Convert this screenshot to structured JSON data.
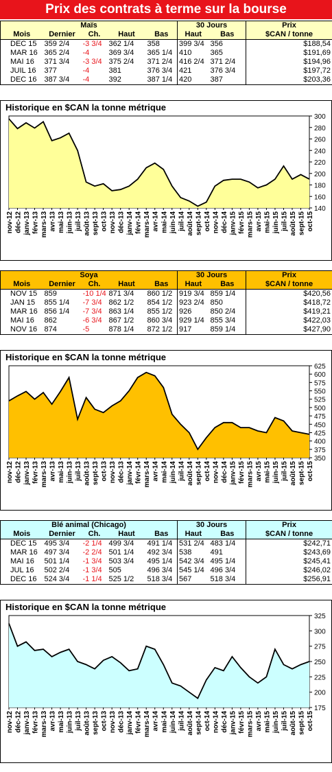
{
  "banner": "Prix des contrats à terme sur la bourse",
  "chart_title": "Historique en $CAN la tonne métrique",
  "header_labels": {
    "mois": "Mois",
    "dernier": "Dernier",
    "ch": "Ch.",
    "haut": "Haut",
    "bas": "Bas",
    "thirty": "30 Jours",
    "prix": "Prix",
    "unit": "$CAN / tonne"
  },
  "x_labels": [
    "nov-12",
    "déc-12",
    "janv-13",
    "févr-13",
    "mars-13",
    "avr-13",
    "mai-13",
    "juin-13",
    "juil-13",
    "août-13",
    "sept-13",
    "oct-13",
    "nov-13",
    "déc-13",
    "janv-14",
    "févr-14",
    "mars-14",
    "avr-14",
    "mai-14",
    "juin-14",
    "juil-14",
    "août-14",
    "sept-14",
    "oct-14",
    "nov-14",
    "déc-14",
    "janv-15",
    "févr-15",
    "mars-15",
    "avr-15",
    "mai-15",
    "juin-15",
    "juil-15",
    "août-15",
    "sept-15",
    "oct-15"
  ],
  "sections": [
    {
      "name": "Maïs",
      "head_color": "#ffffc0",
      "rows": [
        {
          "mois": "DEC 15",
          "dernier": "359 2/4",
          "ch": "-3 3/4",
          "haut": "362 1/4",
          "bas": "358",
          "h30": "399 3/4",
          "b30": "356",
          "prix": "$188,54"
        },
        {
          "mois": "MAR 16",
          "dernier": "365 2/4",
          "ch": "-4",
          "haut": "369 3/4",
          "bas": "365 1/4",
          "h30": "410",
          "b30": "365",
          "prix": "$191,69"
        },
        {
          "mois": "MAI 16",
          "dernier": "371 3/4",
          "ch": "-3 3/4",
          "haut": "375 2/4",
          "bas": "371 2/4",
          "h30": "416 2/4",
          "b30": "371 2/4",
          "prix": "$194,96"
        },
        {
          "mois": "JUIL 16",
          "dernier": "377",
          "ch": "-4",
          "haut": "381",
          "bas": "376 3/4",
          "h30": "421",
          "b30": "376 3/4",
          "prix": "$197,72"
        },
        {
          "mois": "DEC 16",
          "dernier": "387 3/4",
          "ch": "-4",
          "haut": "392",
          "bas": "387 1/4",
          "h30": "420",
          "b30": "387",
          "prix": "$203,36"
        }
      ]
    },
    {
      "name": "Soya",
      "head_color": "#ffc000",
      "rows": [
        {
          "mois": "NOV 15",
          "dernier": "859",
          "ch": "-10 1/4",
          "haut": "871 3/4",
          "bas": "860 1/2",
          "h30": "919 3/4",
          "b30": "859 1/4",
          "prix": "$420,56"
        },
        {
          "mois": "JAN 15",
          "dernier": "855 1/4",
          "ch": "-7 3/4",
          "haut": "862 1/2",
          "bas": "854 1/2",
          "h30": "923 2/4",
          "b30": "850",
          "prix": "$418,72"
        },
        {
          "mois": "MAR 16",
          "dernier": "856 1/4",
          "ch": "-7 3/4",
          "haut": "863 1/4",
          "bas": "855 1/2",
          "h30": "926",
          "b30": "850 2/4",
          "prix": "$419,21"
        },
        {
          "mois": "MAI 16",
          "dernier": "862",
          "ch": "-6 3/4",
          "haut": "867 1/2",
          "bas": "860 3/4",
          "h30": "929 1/4",
          "b30": "855 3/4",
          "prix": "$422,03"
        },
        {
          "mois": "NOV 16",
          "dernier": "874",
          "ch": "-5",
          "haut": "878 1/4",
          "bas": "872 1/2",
          "h30": "917",
          "b30": "859 1/4",
          "prix": "$427,90"
        }
      ]
    },
    {
      "name": "Blé animal (Chicago)",
      "head_color": "#ccffff",
      "rows": [
        {
          "mois": "DEC 15",
          "dernier": "495 3/4",
          "ch": "-2 1/4",
          "haut": "499 3/4",
          "bas": "491 1/4",
          "h30": "531 2/4",
          "b30": "483 1/4",
          "prix": "$242,71"
        },
        {
          "mois": "MAR 16",
          "dernier": "497 3/4",
          "ch": "-2 2/4",
          "haut": "501 1/4",
          "bas": "492 3/4",
          "h30": "538",
          "b30": "491",
          "prix": "$243,69"
        },
        {
          "mois": "MAI 16",
          "dernier": "501 1/4",
          "ch": "-1 3/4",
          "haut": "503 3/4",
          "bas": "495 1/4",
          "h30": "542 3/4",
          "b30": "495 1/4",
          "prix": "$245,41"
        },
        {
          "mois": "JUL 16",
          "dernier": "502 2/4",
          "ch": "-1 3/4",
          "haut": "505",
          "bas": "496 3/4",
          "h30": "545 1/4",
          "b30": "496 3/4",
          "prix": "$246,02"
        },
        {
          "mois": "DEC 16",
          "dernier": "524 3/4",
          "ch": "-1 1/4",
          "haut": "525 1/2",
          "bas": "518 3/4",
          "h30": "567",
          "b30": "518 3/4",
          "prix": "$256,91"
        }
      ]
    }
  ],
  "chart_data": [
    {
      "type": "area",
      "fill": "#ffff99",
      "ylim": [
        140,
        300
      ],
      "yticks": [
        140,
        160,
        180,
        200,
        220,
        240,
        260,
        280,
        300
      ],
      "x": [
        "nov-12",
        "déc-12",
        "janv-13",
        "févr-13",
        "mars-13",
        "avr-13",
        "mai-13",
        "juin-13",
        "juil-13",
        "août-13",
        "sept-13",
        "oct-13",
        "nov-13",
        "déc-13",
        "janv-14",
        "févr-14",
        "mars-14",
        "avr-14",
        "mai-14",
        "juin-14",
        "juil-14",
        "août-14",
        "sept-14",
        "oct-14",
        "nov-14",
        "déc-14",
        "janv-15",
        "févr-15",
        "mars-15",
        "avr-15",
        "mai-15",
        "juin-15",
        "juil-15",
        "août-15",
        "sept-15",
        "oct-15"
      ],
      "values": [
        295,
        278,
        288,
        279,
        290,
        257,
        262,
        270,
        240,
        185,
        178,
        182,
        170,
        172,
        178,
        190,
        210,
        218,
        207,
        178,
        158,
        152,
        143,
        150,
        178,
        188,
        190,
        190,
        185,
        175,
        180,
        190,
        213,
        190,
        198,
        190
      ]
    },
    {
      "type": "area",
      "fill": "#ffc000",
      "ylim": [
        350,
        625
      ],
      "yticks": [
        350,
        375,
        400,
        425,
        450,
        475,
        500,
        525,
        550,
        575,
        600,
        625
      ],
      "x": [
        "nov-12",
        "déc-12",
        "janv-13",
        "févr-13",
        "mars-13",
        "avr-13",
        "mai-13",
        "juin-13",
        "juil-13",
        "août-13",
        "sept-13",
        "oct-13",
        "nov-13",
        "déc-13",
        "janv-14",
        "févr-14",
        "mars-14",
        "avr-14",
        "mai-14",
        "juin-14",
        "juil-14",
        "août-14",
        "sept-14",
        "oct-14",
        "nov-14",
        "déc-14",
        "janv-15",
        "févr-15",
        "mars-15",
        "avr-15",
        "mai-15",
        "juin-15",
        "juil-15",
        "août-15",
        "sept-15",
        "oct-15"
      ],
      "values": [
        520,
        535,
        548,
        525,
        545,
        510,
        548,
        590,
        465,
        530,
        495,
        485,
        505,
        520,
        550,
        590,
        605,
        595,
        560,
        480,
        450,
        425,
        375,
        410,
        440,
        455,
        455,
        440,
        440,
        430,
        425,
        470,
        460,
        430,
        425,
        420
      ]
    },
    {
      "type": "area",
      "fill": "#ccffff",
      "ylim": [
        175,
        325
      ],
      "yticks": [
        175,
        200,
        225,
        250,
        275,
        300,
        325
      ],
      "x": [
        "nov-12",
        "déc-12",
        "janv-13",
        "févr-13",
        "mars-13",
        "avr-13",
        "mai-13",
        "juin-13",
        "juil-13",
        "août-13",
        "sept-13",
        "oct-13",
        "nov-13",
        "déc-13",
        "janv-14",
        "févr-14",
        "mars-14",
        "avr-14",
        "mai-14",
        "juin-14",
        "juil-14",
        "août-14",
        "sept-14",
        "oct-14",
        "nov-14",
        "déc-14",
        "janv-15",
        "févr-15",
        "mars-15",
        "avr-15",
        "mai-15",
        "juin-15",
        "juil-15",
        "août-15",
        "sept-15",
        "oct-15"
      ],
      "values": [
        312,
        275,
        282,
        268,
        270,
        258,
        265,
        270,
        250,
        245,
        238,
        252,
        258,
        248,
        235,
        238,
        275,
        270,
        245,
        215,
        210,
        200,
        190,
        220,
        240,
        235,
        258,
        240,
        225,
        215,
        225,
        270,
        245,
        238,
        245,
        250
      ]
    }
  ]
}
